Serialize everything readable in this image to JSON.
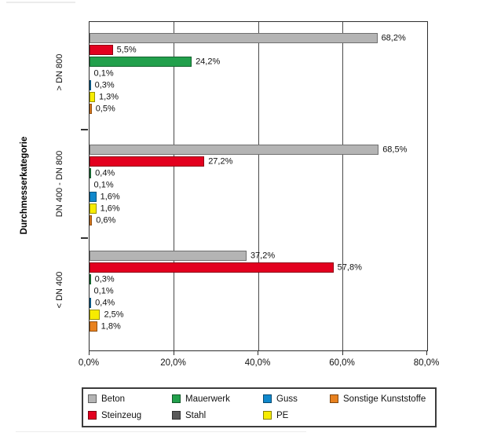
{
  "chart_data": {
    "type": "bar",
    "orientation": "horizontal",
    "title": "",
    "xlabel": "",
    "ylabel": "Durchmesserkategorie",
    "xlim": [
      0,
      80
    ],
    "x_ticks": [
      "0,0%",
      "20,0%",
      "40,0%",
      "60,0%",
      "80,0%"
    ],
    "grid": "vertical gridlines every 20%",
    "legend_position": "bottom",
    "categories": [
      "> DN 800",
      "DN 400 - DN 800",
      "< DN 400"
    ],
    "series": [
      {
        "name": "Beton",
        "color": "#b4b4b4",
        "values": [
          68.2,
          68.5,
          37.2
        ],
        "labels": [
          "68,2%",
          "68,5%",
          "37,2%"
        ]
      },
      {
        "name": "Steinzeug",
        "color": "#e3001f",
        "values": [
          5.5,
          27.2,
          57.8
        ],
        "labels": [
          "5,5%",
          "27,2%",
          "57,8%"
        ]
      },
      {
        "name": "Mauerwerk",
        "color": "#22a04c",
        "values": [
          24.2,
          0.4,
          0.3
        ],
        "labels": [
          "24,2%",
          "0,4%",
          "0,3%"
        ]
      },
      {
        "name": "Stahl",
        "color": "#595959",
        "values": [
          0.1,
          0.1,
          0.1
        ],
        "labels": [
          "0,1%",
          "0,1%",
          "0,1%"
        ]
      },
      {
        "name": "Guss",
        "color": "#1088cc",
        "values": [
          0.3,
          1.6,
          0.4
        ],
        "labels": [
          "0,3%",
          "1,6%",
          "0,4%"
        ]
      },
      {
        "name": "PE",
        "color": "#f7ec00",
        "values": [
          1.3,
          1.6,
          2.5
        ],
        "labels": [
          "1,3%",
          "1,6%",
          "2,5%"
        ]
      },
      {
        "name": "Sonstige Kunststoffe",
        "color": "#e8811f",
        "values": [
          0.5,
          0.6,
          1.8
        ],
        "labels": [
          "0,5%",
          "0,6%",
          "1,8%"
        ]
      }
    ],
    "legend_rows": [
      [
        "Beton",
        "Mauerwerk",
        "Guss",
        "Sonstige Kunststoffe"
      ],
      [
        "Steinzeug",
        "Stahl",
        "PE"
      ]
    ]
  }
}
